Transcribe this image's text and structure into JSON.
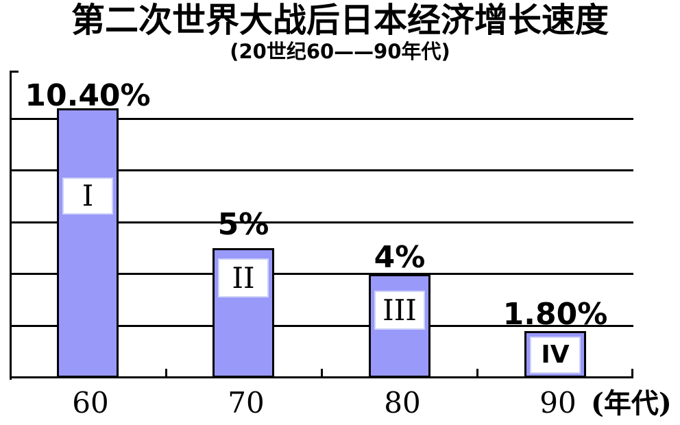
{
  "page": {
    "background": "#ffffff"
  },
  "chart_data": {
    "type": "bar",
    "title": "第二次世界大战后日本经济增长速度",
    "subtitle": "(20世纪60——90年代)",
    "xlabel": "(年代)",
    "ylabel": "",
    "categories": [
      "60",
      "70",
      "80",
      "90"
    ],
    "values": [
      10.4,
      5,
      4,
      1.8
    ],
    "value_labels": [
      "10.40%",
      "5%",
      "4%",
      "1.80%"
    ],
    "bar_inner_labels": [
      "I",
      "II",
      "III",
      "IV"
    ],
    "ylim": [
      0,
      12
    ],
    "gridline_values": [
      2,
      4,
      6,
      8,
      10
    ],
    "grid": true,
    "legend": false,
    "colors": {
      "bar_fill": "#9999fa",
      "bar_border": "#000000",
      "gridline": "#000000",
      "axis": "#000000",
      "inner_box_bg": "#ffffff",
      "inner_box_border": "#ced3f6",
      "text": "#000000"
    }
  }
}
